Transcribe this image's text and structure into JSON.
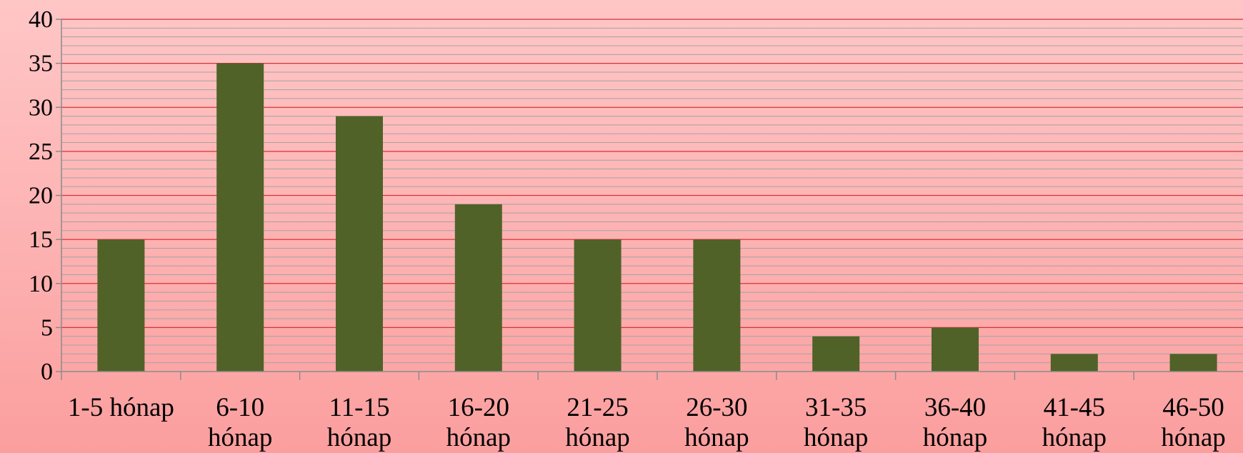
{
  "chart_data": {
    "type": "bar",
    "categories": [
      [
        "1-5 hónap"
      ],
      [
        "6-10",
        "hónap"
      ],
      [
        "11-15",
        "hónap"
      ],
      [
        "16-20",
        "hónap"
      ],
      [
        "21-25",
        "hónap"
      ],
      [
        "26-30",
        "hónap"
      ],
      [
        "31-35",
        "hónap"
      ],
      [
        "36-40",
        "hónap"
      ],
      [
        "41-45",
        "hónap"
      ],
      [
        "46-50",
        "hónap"
      ]
    ],
    "values": [
      15,
      35,
      29,
      19,
      15,
      15,
      4,
      5,
      2,
      2
    ],
    "title": "",
    "xlabel": "",
    "ylabel": "",
    "ylim": [
      0,
      40
    ],
    "yticks": [
      0,
      5,
      10,
      15,
      20,
      25,
      30,
      35,
      40
    ],
    "major_grid_step": 5,
    "minor_grid_step": 1,
    "grid": true,
    "legend": "none",
    "colors": {
      "bar": "#506228",
      "major_grid": "#d4343a",
      "minor_grid": "#a3a3a3",
      "axis": "#8c8c8c"
    }
  }
}
